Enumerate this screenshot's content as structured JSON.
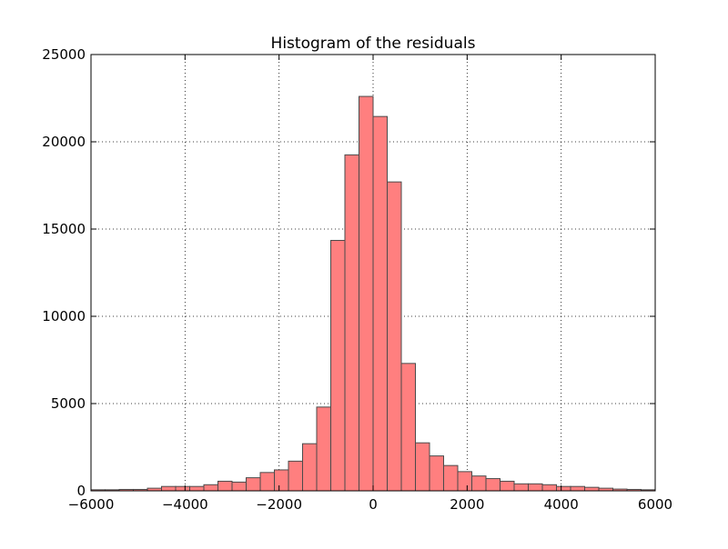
{
  "chart_data": {
    "type": "bar",
    "title": "Histogram of the residuals",
    "xlabel": "",
    "ylabel": "",
    "xlim": [
      -6000,
      6000
    ],
    "ylim": [
      0,
      25000
    ],
    "grid": true,
    "bar_color": "#ff7f7f",
    "edge_color": "#4a4a4a",
    "bin_edges": [
      -6000,
      -5700,
      -5400,
      -5100,
      -4800,
      -4500,
      -4200,
      -3900,
      -3600,
      -3300,
      -3000,
      -2700,
      -2400,
      -2100,
      -1800,
      -1500,
      -1200,
      -900,
      -600,
      -300,
      0,
      300,
      600,
      900,
      1200,
      1500,
      1800,
      2100,
      2400,
      2700,
      3000,
      3300,
      3600,
      3900,
      4200,
      4500,
      4800,
      5100,
      5400,
      5700,
      6000
    ],
    "values": [
      60,
      60,
      80,
      80,
      150,
      250,
      250,
      250,
      350,
      550,
      500,
      750,
      1050,
      1200,
      1700,
      2700,
      4800,
      14350,
      19250,
      22600,
      21450,
      17700,
      7300,
      2750,
      2000,
      1450,
      1100,
      850,
      700,
      550,
      400,
      400,
      350,
      250,
      250,
      200,
      150,
      100,
      80,
      60
    ],
    "x_ticks": [
      -6000,
      -4000,
      -2000,
      0,
      2000,
      4000,
      6000
    ],
    "x_tick_labels": [
      "−6000",
      "−4000",
      "−2000",
      "0",
      "2000",
      "4000",
      "6000"
    ],
    "y_ticks": [
      0,
      5000,
      10000,
      15000,
      20000,
      25000
    ],
    "y_tick_labels": [
      "0",
      "5000",
      "10000",
      "15000",
      "20000",
      "25000"
    ]
  }
}
